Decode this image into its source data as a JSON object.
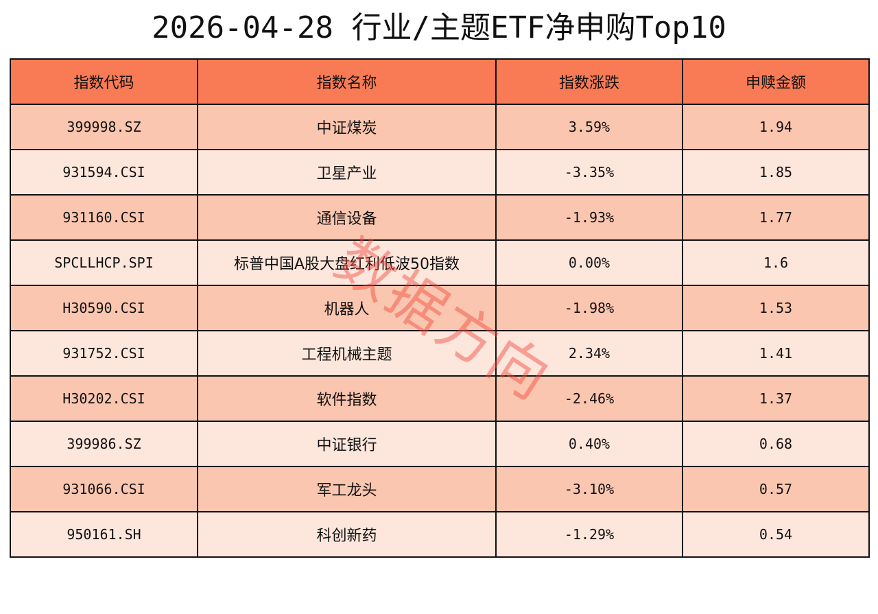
{
  "title": "2026-04-28 行业/主题ETF净申购Top10",
  "watermark": "数据方向",
  "colors": {
    "header_bg": "#f97b55",
    "row_odd_bg": "#fbc6b0",
    "row_even_bg": "#fde6dc",
    "border": "#111111",
    "watermark": "#f0463c"
  },
  "columns": [
    "指数代码",
    "指数名称",
    "指数涨跌",
    "申赎金额"
  ],
  "rows": [
    {
      "code": "399998.SZ",
      "name": "中证煤炭",
      "change": "3.59%",
      "amount": "1.94"
    },
    {
      "code": "931594.CSI",
      "name": "卫星产业",
      "change": "-3.35%",
      "amount": "1.85"
    },
    {
      "code": "931160.CSI",
      "name": "通信设备",
      "change": "-1.93%",
      "amount": "1.77"
    },
    {
      "code": "SPCLLHCP.SPI",
      "name": "标普中国A股大盘红利低波50指数",
      "change": "0.00%",
      "amount": "1.6"
    },
    {
      "code": "H30590.CSI",
      "name": "机器人",
      "change": "-1.98%",
      "amount": "1.53"
    },
    {
      "code": "931752.CSI",
      "name": "工程机械主题",
      "change": "2.34%",
      "amount": "1.41"
    },
    {
      "code": "H30202.CSI",
      "name": "软件指数",
      "change": "-2.46%",
      "amount": "1.37"
    },
    {
      "code": "399986.SZ",
      "name": "中证银行",
      "change": "0.40%",
      "amount": "0.68"
    },
    {
      "code": "931066.CSI",
      "name": "军工龙头",
      "change": "-3.10%",
      "amount": "0.57"
    },
    {
      "code": "950161.SH",
      "name": "科创新药",
      "change": "-1.29%",
      "amount": "0.54"
    }
  ]
}
